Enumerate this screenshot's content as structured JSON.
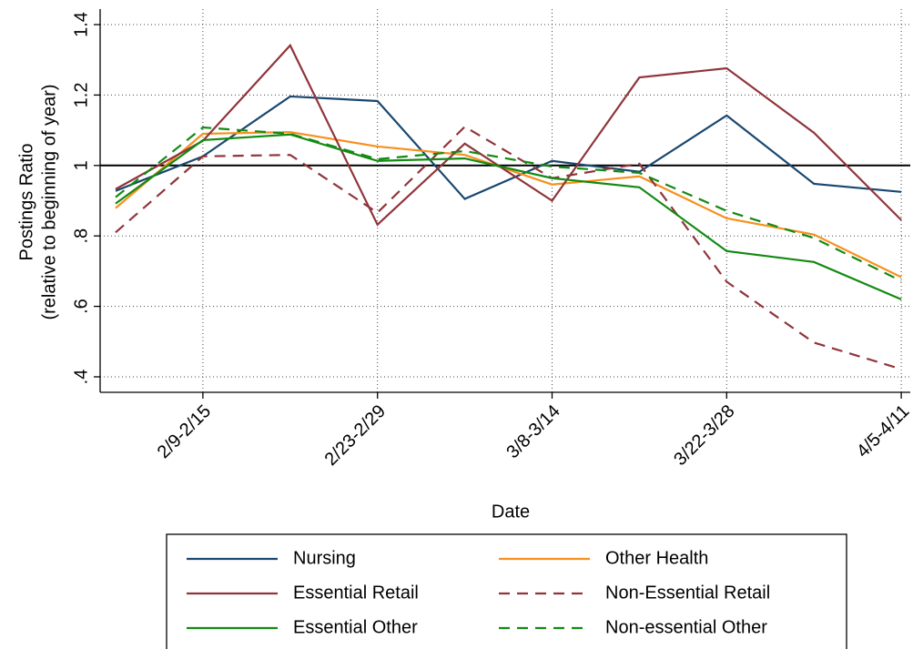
{
  "chart_data": {
    "type": "line",
    "y_label": [
      "Postings Ratio",
      "(relative to beginning of year)"
    ],
    "x_label": "Date",
    "categories": [
      null,
      "2/9-2/15",
      null,
      "2/23-2/29",
      null,
      "3/8-3/14",
      null,
      "3/22-3/28",
      null,
      "4/5-4/11"
    ],
    "ylim": [
      0.356,
      1.444
    ],
    "yticks": [
      {
        "value": 0.4,
        "label": ".4"
      },
      {
        "value": 0.6,
        "label": ".6"
      },
      {
        "value": 0.8,
        "label": ".8"
      },
      1,
      1.2,
      1.4
    ],
    "grid": true,
    "refline": 1,
    "series": [
      {
        "name": "Nursing",
        "color": "#1a476f",
        "dash": false,
        "values": [
          0.928,
          1.026,
          1.196,
          1.183,
          0.905,
          1.013,
          0.982,
          1.142,
          0.948,
          0.925
        ]
      },
      {
        "name": "Other Health",
        "color": "#f7901e",
        "dash": false,
        "values": [
          0.879,
          1.09,
          1.095,
          1.054,
          1.03,
          0.946,
          0.969,
          0.85,
          0.804,
          0.683
        ]
      },
      {
        "name": "Essential Retail",
        "color": "#90353b",
        "dash": false,
        "values": [
          0.933,
          1.07,
          1.341,
          0.832,
          1.062,
          0.9,
          1.25,
          1.276,
          1.093,
          0.845
        ]
      },
      {
        "name": "Non-Essential Retail",
        "color": "#90353b",
        "dash": true,
        "values": [
          0.81,
          1.026,
          1.03,
          0.866,
          1.11,
          0.964,
          1.005,
          0.67,
          0.497,
          0.422
        ]
      },
      {
        "name": "Essential Other",
        "color": "#138a13",
        "dash": false,
        "values": [
          0.892,
          1.072,
          1.088,
          1.013,
          1.02,
          0.964,
          0.938,
          0.757,
          0.726,
          0.62
        ]
      },
      {
        "name": "Non-essential Other",
        "color": "#138a13",
        "dash": true,
        "values": [
          0.91,
          1.108,
          1.09,
          1.018,
          1.041,
          0.997,
          0.979,
          0.871,
          0.794,
          0.672
        ]
      }
    ],
    "legend": "bottom"
  }
}
